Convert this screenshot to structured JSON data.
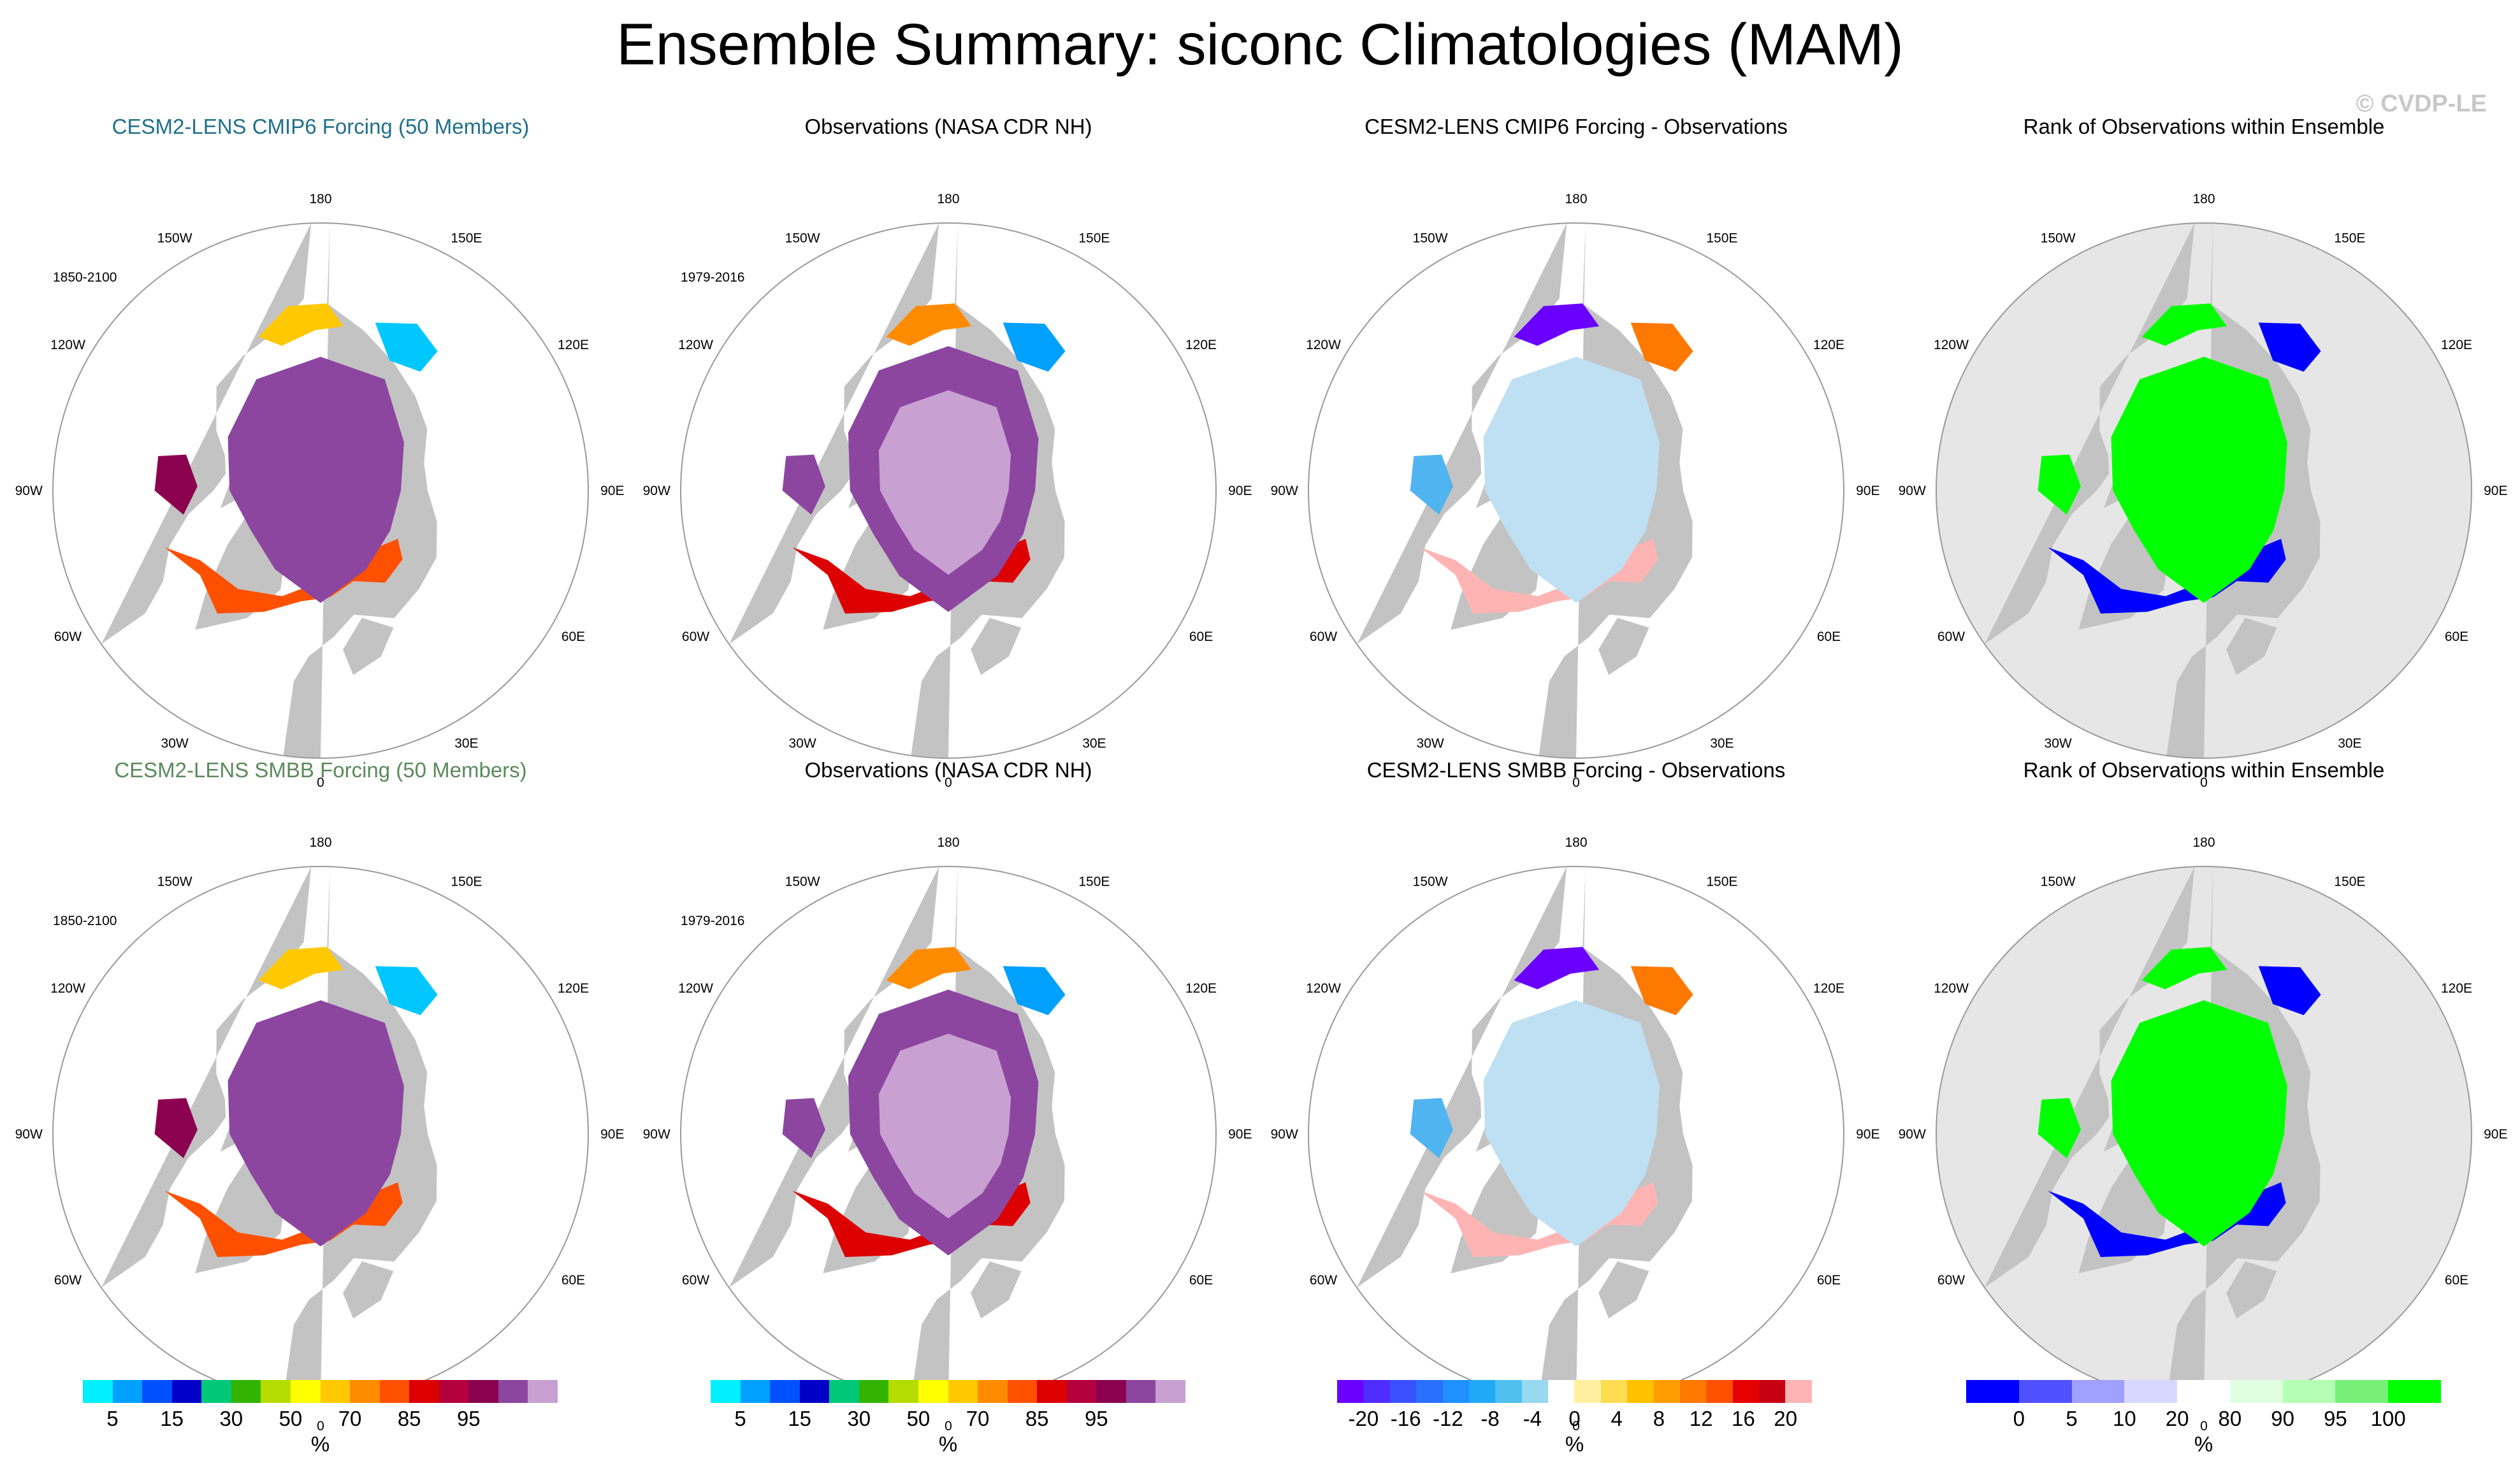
{
  "title": "Ensemble Summary: siconc Climatologies (MAM)",
  "copyright": "© CVDP-LE",
  "chart_data": [
    {
      "type": "map",
      "row": 0,
      "col": 0,
      "title": "CESM2-LENS CMIP6 Forcing (50 Members)",
      "title_color": "#1f6f8b",
      "years": "1850-2100",
      "style": "model",
      "variable": "siconc",
      "units": "%"
    },
    {
      "type": "map",
      "row": 0,
      "col": 1,
      "title": "Observations (NASA CDR NH)",
      "title_color": "#000000",
      "years": "1979-2016",
      "style": "obs",
      "variable": "siconc",
      "units": "%"
    },
    {
      "type": "map",
      "row": 0,
      "col": 2,
      "title": "CESM2-LENS CMIP6 Forcing - Observations",
      "title_color": "#000000",
      "years": "",
      "style": "diff",
      "variable": "siconc difference",
      "units": "%"
    },
    {
      "type": "map",
      "row": 0,
      "col": 3,
      "title": "Rank of Observations within Ensemble",
      "title_color": "#000000",
      "years": "",
      "style": "rank",
      "variable": "rank",
      "units": "%"
    },
    {
      "type": "map",
      "row": 1,
      "col": 0,
      "title": "CESM2-LENS SMBB Forcing (50 Members)",
      "title_color": "#5a8a5a",
      "years": "1850-2100",
      "style": "model",
      "variable": "siconc",
      "units": "%"
    },
    {
      "type": "map",
      "row": 1,
      "col": 1,
      "title": "Observations (NASA CDR NH)",
      "title_color": "#000000",
      "years": "1979-2016",
      "style": "obs",
      "variable": "siconc",
      "units": "%"
    },
    {
      "type": "map",
      "row": 1,
      "col": 2,
      "title": "CESM2-LENS SMBB Forcing - Observations",
      "title_color": "#000000",
      "years": "",
      "style": "diff",
      "variable": "siconc difference",
      "units": "%"
    },
    {
      "type": "map",
      "row": 1,
      "col": 3,
      "title": "Rank of Observations within Ensemble",
      "title_color": "#000000",
      "years": "",
      "style": "rank",
      "variable": "rank",
      "units": "%"
    }
  ],
  "longitude_labels": [
    {
      "lon": 180,
      "text": "180"
    },
    {
      "lon": 150,
      "text": "150E"
    },
    {
      "lon": 120,
      "text": "120E"
    },
    {
      "lon": 90,
      "text": "90E"
    },
    {
      "lon": 60,
      "text": "60E"
    },
    {
      "lon": 30,
      "text": "30E"
    },
    {
      "lon": 0,
      "text": "0"
    },
    {
      "lon": -30,
      "text": "30W"
    },
    {
      "lon": -60,
      "text": "60W"
    },
    {
      "lon": -90,
      "text": "90W"
    },
    {
      "lon": -120,
      "text": "120W"
    },
    {
      "lon": -150,
      "text": "150W"
    }
  ],
  "colorbars": [
    {
      "name": "concentration",
      "units": "%",
      "colors": [
        "#00f0ff",
        "#00a0ff",
        "#0050ff",
        "#0000c8",
        "#00c878",
        "#32b400",
        "#b4dc00",
        "#ffff00",
        "#ffc800",
        "#ff8c00",
        "#ff5000",
        "#dc0000",
        "#b4003c",
        "#8c0050",
        "#8c46a0",
        "#c8a0d2"
      ],
      "labels": [
        "5",
        "15",
        "30",
        "50",
        "70",
        "85",
        "95"
      ]
    },
    {
      "name": "concentration",
      "units": "%",
      "colors": [
        "#00f0ff",
        "#00a0ff",
        "#0050ff",
        "#0000c8",
        "#00c878",
        "#32b400",
        "#b4dc00",
        "#ffff00",
        "#ffc800",
        "#ff8c00",
        "#ff5000",
        "#dc0000",
        "#b4003c",
        "#8c0050",
        "#8c46a0",
        "#c8a0d2"
      ],
      "labels": [
        "5",
        "15",
        "30",
        "50",
        "70",
        "85",
        "95"
      ]
    },
    {
      "name": "difference",
      "units": "%",
      "colors": [
        "#6a00ff",
        "#4f2cff",
        "#3a50ff",
        "#2a70ff",
        "#1f90ff",
        "#20aaf5",
        "#50c0f0",
        "#98d8f0",
        "#ffffff",
        "#fff0a0",
        "#ffdc50",
        "#ffc000",
        "#ff9c00",
        "#ff7800",
        "#ff5000",
        "#e60000",
        "#c80014",
        "#ffb4b4"
      ],
      "labels": [
        "-20",
        "-16",
        "-12",
        "-8",
        "-4",
        "0",
        "4",
        "8",
        "12",
        "16",
        "20"
      ]
    },
    {
      "name": "rank",
      "units": "%",
      "colors": [
        "#0000ff",
        "#5050ff",
        "#a0a0ff",
        "#d8d8ff",
        "#ffffff",
        "#e0ffe0",
        "#b4ffb4",
        "#78f078",
        "#00ff00"
      ],
      "labels": [
        "0",
        "5",
        "10",
        "20",
        "80",
        "90",
        "95",
        "100"
      ]
    }
  ]
}
